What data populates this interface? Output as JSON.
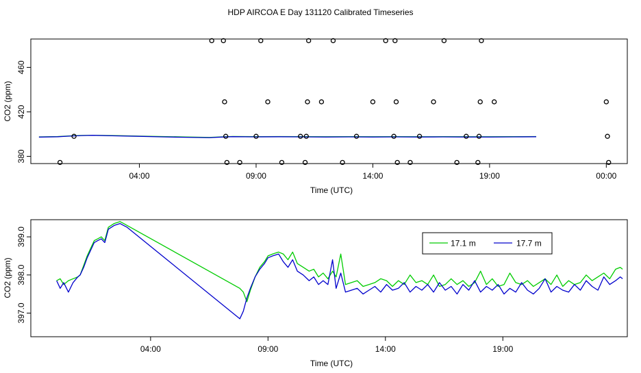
{
  "page_title": "HDP AIRCOA E  Day 131120  Calibrated Timeseries",
  "chart_data": [
    {
      "type": "scatter",
      "xlabel": "Time (UTC)",
      "ylabel": "CO2 (ppm)",
      "x_ticks": [
        {
          "h": 4,
          "label": "04:00"
        },
        {
          "h": 9,
          "label": "09:00"
        },
        {
          "h": 14,
          "label": "14:00"
        },
        {
          "h": 19,
          "label": "19:00"
        },
        {
          "h": 24,
          "label": "00:00"
        }
      ],
      "y_ticks": [
        380,
        420,
        460
      ],
      "xlim": [
        -0.65,
        24.9
      ],
      "ylim": [
        373.5,
        485.5
      ],
      "points": [
        {
          "x": 0.6,
          "y": 374.5
        },
        {
          "x": 1.2,
          "y": 398
        },
        {
          "x": 7.1,
          "y": 484
        },
        {
          "x": 7.6,
          "y": 484
        },
        {
          "x": 7.65,
          "y": 429
        },
        {
          "x": 7.7,
          "y": 398
        },
        {
          "x": 7.75,
          "y": 374.5
        },
        {
          "x": 8.3,
          "y": 374.5
        },
        {
          "x": 9.0,
          "y": 398
        },
        {
          "x": 9.2,
          "y": 484
        },
        {
          "x": 9.5,
          "y": 429
        },
        {
          "x": 10.1,
          "y": 374.5
        },
        {
          "x": 10.9,
          "y": 398
        },
        {
          "x": 11.1,
          "y": 374.5
        },
        {
          "x": 11.15,
          "y": 398
        },
        {
          "x": 11.2,
          "y": 429
        },
        {
          "x": 11.25,
          "y": 484
        },
        {
          "x": 11.8,
          "y": 429
        },
        {
          "x": 12.3,
          "y": 484
        },
        {
          "x": 12.7,
          "y": 374.5
        },
        {
          "x": 13.3,
          "y": 398
        },
        {
          "x": 14.0,
          "y": 429
        },
        {
          "x": 14.55,
          "y": 484
        },
        {
          "x": 14.9,
          "y": 398
        },
        {
          "x": 14.95,
          "y": 484
        },
        {
          "x": 15.0,
          "y": 429
        },
        {
          "x": 15.05,
          "y": 374.5
        },
        {
          "x": 15.6,
          "y": 374.5
        },
        {
          "x": 16.0,
          "y": 398
        },
        {
          "x": 16.6,
          "y": 429
        },
        {
          "x": 17.05,
          "y": 484
        },
        {
          "x": 17.6,
          "y": 374.5
        },
        {
          "x": 18.0,
          "y": 398
        },
        {
          "x": 18.5,
          "y": 374.5
        },
        {
          "x": 18.55,
          "y": 398
        },
        {
          "x": 18.6,
          "y": 429
        },
        {
          "x": 18.65,
          "y": 484
        },
        {
          "x": 19.2,
          "y": 429
        },
        {
          "x": 24.0,
          "y": 429
        },
        {
          "x": 24.05,
          "y": 398
        },
        {
          "x": 24.1,
          "y": 374.5
        }
      ],
      "series": [
        {
          "color": "#00cc00",
          "x": [
            -0.3,
            0.5,
            1.0,
            1.5,
            2.0,
            3.0,
            4.0,
            5.0,
            6.0,
            7.0,
            7.5,
            8.0,
            9.0,
            10.0,
            11.0,
            12.0,
            13.0,
            14.0,
            15.0,
            16.0,
            17.0,
            18.0,
            19.0,
            20.0,
            21.0
          ],
          "y": [
            397.5,
            397.8,
            398.3,
            398.8,
            399.0,
            398.6,
            398.2,
            397.8,
            397.4,
            397.0,
            397.5,
            397.9,
            397.7,
            397.8,
            397.7,
            397.6,
            397.7,
            397.6,
            397.7,
            397.6,
            397.7,
            397.6,
            397.6,
            397.7,
            397.8
          ]
        },
        {
          "color": "#0000cc",
          "x": [
            -0.3,
            0.5,
            1.0,
            1.5,
            2.0,
            3.0,
            4.0,
            5.0,
            6.0,
            7.0,
            7.5,
            8.0,
            9.0,
            10.0,
            11.0,
            12.0,
            13.0,
            14.0,
            15.0,
            16.0,
            17.0,
            18.0,
            19.0,
            20.0,
            21.0
          ],
          "y": [
            397.3,
            397.6,
            398.2,
            398.7,
            398.9,
            398.4,
            398.0,
            397.5,
            397.1,
            396.8,
            397.3,
            397.7,
            397.5,
            397.6,
            397.5,
            397.4,
            397.5,
            397.4,
            397.5,
            397.4,
            397.5,
            397.4,
            397.4,
            397.5,
            397.6
          ]
        }
      ]
    },
    {
      "type": "line",
      "xlabel": "Time (UTC)",
      "ylabel": "CO2 (ppm)",
      "x_ticks": [
        {
          "h": 4,
          "label": "04:00"
        },
        {
          "h": 9,
          "label": "09:00"
        },
        {
          "h": 14,
          "label": "14:00"
        },
        {
          "h": 19,
          "label": "19:00"
        }
      ],
      "y_ticks": [
        {
          "v": 397.0,
          "label": "397.0"
        },
        {
          "v": 398.0,
          "label": "398.0"
        },
        {
          "v": 399.0,
          "label": "399.0"
        }
      ],
      "xlim": [
        -1.1,
        24.3
      ],
      "ylim": [
        396.38,
        399.45
      ],
      "legend": {
        "placement": "top-right"
      },
      "series": [
        {
          "name": "17.1 m",
          "color": "#00cc00",
          "x": [
            0,
            0.15,
            0.3,
            0.5,
            0.7,
            0.9,
            1.0,
            1.15,
            1.3,
            1.45,
            1.6,
            1.75,
            1.9,
            2.05,
            2.2,
            2.45,
            2.7,
            2.85,
            3.0,
            7.8,
            7.95,
            8.1,
            8.25,
            8.45,
            8.65,
            8.85,
            9.0,
            9.2,
            9.45,
            9.65,
            9.85,
            10.05,
            10.25,
            10.5,
            10.75,
            10.95,
            11.15,
            11.35,
            11.55,
            11.75,
            11.9,
            12.1,
            12.3,
            12.55,
            12.8,
            13.05,
            13.3,
            13.55,
            13.8,
            14.05,
            14.3,
            14.55,
            14.8,
            15.05,
            15.3,
            15.55,
            15.8,
            16.05,
            16.3,
            16.55,
            16.8,
            17.05,
            17.3,
            17.55,
            17.8,
            18.05,
            18.3,
            18.55,
            18.8,
            19.05,
            19.3,
            19.55,
            19.8,
            20.05,
            20.3,
            20.55,
            20.8,
            21.05,
            21.3,
            21.55,
            21.8,
            22.05,
            22.3,
            22.55,
            22.8,
            23.05,
            23.3,
            23.55,
            23.8,
            24.0,
            24.1
          ],
          "y": [
            397.85,
            397.9,
            397.75,
            397.85,
            397.9,
            397.95,
            398.0,
            398.25,
            398.5,
            398.7,
            398.9,
            398.95,
            399.0,
            398.9,
            399.25,
            399.35,
            399.4,
            399.35,
            399.3,
            397.65,
            397.55,
            397.3,
            397.6,
            397.95,
            398.2,
            398.35,
            398.5,
            398.55,
            398.6,
            398.55,
            398.4,
            398.6,
            398.3,
            398.2,
            398.1,
            398.15,
            397.95,
            398.05,
            397.9,
            398.1,
            397.95,
            398.55,
            397.75,
            397.8,
            397.85,
            397.7,
            397.75,
            397.8,
            397.9,
            397.85,
            397.7,
            397.85,
            397.75,
            398.0,
            397.8,
            397.85,
            397.75,
            398.0,
            397.7,
            397.75,
            397.9,
            397.75,
            397.85,
            397.7,
            397.8,
            398.1,
            397.75,
            397.9,
            397.7,
            397.75,
            398.05,
            397.8,
            397.75,
            397.85,
            397.7,
            397.8,
            397.9,
            397.75,
            398.0,
            397.7,
            397.85,
            397.75,
            397.8,
            398.0,
            397.85,
            397.95,
            398.05,
            397.9,
            398.15,
            398.2,
            398.15
          ]
        },
        {
          "name": "17.7 m",
          "color": "#0000cc",
          "x": [
            0,
            0.15,
            0.3,
            0.5,
            0.7,
            0.9,
            1.0,
            1.15,
            1.3,
            1.45,
            1.6,
            1.75,
            1.9,
            2.05,
            2.2,
            2.45,
            2.7,
            2.85,
            3.0,
            7.8,
            7.95,
            8.1,
            8.25,
            8.45,
            8.65,
            8.85,
            9.0,
            9.2,
            9.45,
            9.65,
            9.85,
            10.05,
            10.25,
            10.5,
            10.75,
            10.95,
            11.15,
            11.35,
            11.55,
            11.75,
            11.9,
            12.1,
            12.3,
            12.55,
            12.8,
            13.05,
            13.3,
            13.55,
            13.8,
            14.05,
            14.3,
            14.55,
            14.8,
            15.05,
            15.3,
            15.55,
            15.8,
            16.05,
            16.3,
            16.55,
            16.8,
            17.05,
            17.3,
            17.55,
            17.8,
            18.05,
            18.3,
            18.55,
            18.8,
            19.05,
            19.3,
            19.55,
            19.8,
            20.05,
            20.3,
            20.55,
            20.8,
            21.05,
            21.3,
            21.55,
            21.8,
            22.05,
            22.3,
            22.55,
            22.8,
            23.05,
            23.3,
            23.55,
            23.8,
            24.0,
            24.1
          ],
          "y": [
            397.85,
            397.65,
            397.8,
            397.55,
            397.8,
            397.95,
            398.0,
            398.2,
            398.45,
            398.65,
            398.85,
            398.9,
            398.95,
            398.85,
            399.2,
            399.3,
            399.35,
            399.3,
            399.25,
            396.85,
            397.05,
            397.4,
            397.65,
            397.95,
            398.15,
            398.3,
            398.45,
            398.5,
            398.55,
            398.35,
            398.2,
            398.4,
            398.1,
            398.0,
            397.85,
            397.95,
            397.75,
            397.85,
            397.75,
            398.4,
            397.65,
            398.05,
            397.55,
            397.6,
            397.65,
            397.5,
            397.6,
            397.7,
            397.55,
            397.75,
            397.6,
            397.65,
            397.8,
            397.55,
            397.7,
            397.6,
            397.75,
            397.55,
            397.8,
            397.6,
            397.7,
            397.5,
            397.75,
            397.6,
            397.85,
            397.55,
            397.7,
            397.6,
            397.75,
            397.5,
            397.65,
            397.55,
            397.8,
            397.6,
            397.5,
            397.65,
            397.9,
            397.55,
            397.7,
            397.6,
            397.55,
            397.75,
            397.6,
            397.85,
            397.7,
            397.6,
            397.95,
            397.75,
            397.85,
            397.95,
            397.9
          ]
        }
      ]
    }
  ]
}
